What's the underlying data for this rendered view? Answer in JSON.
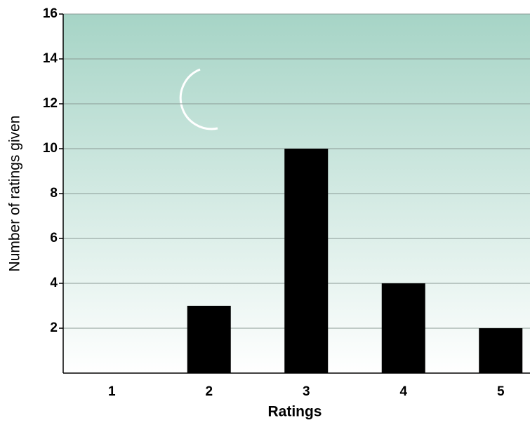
{
  "chart_data": {
    "type": "bar",
    "categories": [
      "1",
      "2",
      "3",
      "4",
      "5"
    ],
    "values": [
      0,
      3,
      10,
      4,
      2
    ],
    "color": "#000000",
    "x_label": "Ratings",
    "y_label": "Number of ratings given",
    "ylim": [
      0,
      16
    ],
    "yticks": [
      2,
      4,
      6,
      8,
      10,
      12,
      14,
      16
    ],
    "grid": true
  }
}
